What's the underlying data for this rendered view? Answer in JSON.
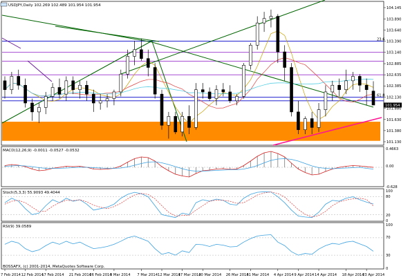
{
  "main": {
    "header": "USDJPY,Daily  102.269 102.489 101.954 101.954",
    "price_axis": [
      {
        "v": 104.145,
        "label": "104.145"
      },
      {
        "v": 103.89,
        "label": "103.890"
      },
      {
        "v": 103.64,
        "label": "103.640"
      },
      {
        "v": 103.39,
        "label": "103.390"
      },
      {
        "v": 103.14,
        "label": "103.140"
      },
      {
        "v": 102.885,
        "label": "102.885"
      },
      {
        "v": 102.635,
        "label": "102.635"
      },
      {
        "v": 102.385,
        "label": "102.385"
      },
      {
        "v": 102.13,
        "label": "102.130"
      },
      {
        "v": 101.88,
        "label": "101.880"
      },
      {
        "v": 101.63,
        "label": "101.630"
      },
      {
        "v": 101.38,
        "label": "101.380"
      },
      {
        "v": 101.13,
        "label": "101.130"
      }
    ],
    "price_badge": "101.954",
    "level_tags": [
      "23.6",
      "61.8"
    ]
  },
  "macd": {
    "header": "MACD(12,26,9) -0.0011 -0.0527 -0.0532",
    "axis": [
      "0.4663",
      "0.00",
      "-0.628"
    ]
  },
  "stoch": {
    "header": "Stoch(5,3,3) 55.9093 49.4044",
    "axis": [
      "100",
      "80",
      "20",
      "0"
    ]
  },
  "rsi": {
    "header": "RSI(9) 39.0589",
    "axis": [
      "100",
      "70",
      "30",
      "0"
    ]
  },
  "footer": {
    "copyright": "BOSSAFX, (c) 2001-2014, MetaQuotes Software Corp.",
    "dates": [
      "7 Feb 2014",
      "12 Feb 2014",
      "17 Feb 2014",
      "21 Feb 2014",
      "26 Feb 2014",
      "3 Mar 2014",
      "7 Mar 2014",
      "12 Mar 2014",
      "17 Mar 2014",
      "20 Mar 2014",
      "26 Mar 2014",
      "31 Mar 2014",
      "4 Apr 2014",
      "9 Apr 2014",
      "14 Apr 2014",
      "18 Apr 2014",
      "23 Apr 2014"
    ]
  },
  "colors": {
    "up": "#ffffff",
    "down": "#000000",
    "support_zone": "#ff8c00",
    "trend_green": "#006400",
    "level_blue": "#0000c8",
    "level_purple": "#9932cc",
    "trend_magenta": "#ff1493",
    "macd_main": "#d22020",
    "macd_signal": "#3aa0e0",
    "stoch_signal": "#e03030"
  },
  "chart_data": {
    "type": "candlestick",
    "symbol": "USDJPY",
    "timeframe": "Daily",
    "x": [
      "7 Feb 2014",
      "10 Feb",
      "11 Feb",
      "12 Feb 2014",
      "13 Feb",
      "14 Feb",
      "17 Feb 2014",
      "18 Feb",
      "19 Feb",
      "20 Feb",
      "21 Feb 2014",
      "24 Feb",
      "25 Feb",
      "26 Feb 2014",
      "27 Feb",
      "28 Feb",
      "3 Mar 2014",
      "4 Mar",
      "5 Mar",
      "6 Mar",
      "7 Mar 2014",
      "10 Mar",
      "11 Mar",
      "12 Mar 2014",
      "13 Mar",
      "14 Mar",
      "17 Mar 2014",
      "18 Mar",
      "19 Mar",
      "20 Mar 2014",
      "21 Mar",
      "24 Mar",
      "25 Mar",
      "26 Mar 2014",
      "27 Mar",
      "28 Mar",
      "31 Mar 2014",
      "1 Apr",
      "2 Apr",
      "3 Apr",
      "4 Apr 2014",
      "7 Apr",
      "8 Apr",
      "9 Apr 2014",
      "10 Apr",
      "11 Apr",
      "14 Apr 2014",
      "15 Apr",
      "16 Apr",
      "17 Apr",
      "18 Apr 2014",
      "21 Apr",
      "22 Apr",
      "23 Apr 2014",
      "24 Apr"
    ],
    "ohlc": [
      [
        102.5,
        102.6,
        102.1,
        102.3
      ],
      [
        102.3,
        102.7,
        102.2,
        102.6
      ],
      [
        102.6,
        102.75,
        102.3,
        102.4
      ],
      [
        102.4,
        102.55,
        101.9,
        102.0
      ],
      [
        102.0,
        102.1,
        101.6,
        101.8
      ],
      [
        101.8,
        102.0,
        101.55,
        101.9
      ],
      [
        101.9,
        102.25,
        101.75,
        102.15
      ],
      [
        102.15,
        102.45,
        102.05,
        102.35
      ],
      [
        102.35,
        102.55,
        102.1,
        102.2
      ],
      [
        102.2,
        102.6,
        102.05,
        102.5
      ],
      [
        102.5,
        102.6,
        102.2,
        102.3
      ],
      [
        102.3,
        102.5,
        102.1,
        102.4
      ],
      [
        102.4,
        102.5,
        102.05,
        102.2
      ],
      [
        102.2,
        102.3,
        101.8,
        102.0
      ],
      [
        102.0,
        102.2,
        101.85,
        102.05
      ],
      [
        102.05,
        102.2,
        101.9,
        102.1
      ],
      [
        102.1,
        102.3,
        101.95,
        102.25
      ],
      [
        102.25,
        102.75,
        102.15,
        102.65
      ],
      [
        102.65,
        103.2,
        102.55,
        103.05
      ],
      [
        103.05,
        103.4,
        102.85,
        103.2
      ],
      [
        103.2,
        103.45,
        102.95,
        103.0
      ],
      [
        103.0,
        103.2,
        102.6,
        102.8
      ],
      [
        102.8,
        102.9,
        102.1,
        102.2
      ],
      [
        102.2,
        102.3,
        101.4,
        101.5
      ],
      [
        101.5,
        101.8,
        101.2,
        101.7
      ],
      [
        101.7,
        101.8,
        101.3,
        101.35
      ],
      [
        101.35,
        101.8,
        101.25,
        101.7
      ],
      [
        101.7,
        101.95,
        101.3,
        101.45
      ],
      [
        101.45,
        102.45,
        101.4,
        102.3
      ],
      [
        102.3,
        102.45,
        102.1,
        102.25
      ],
      [
        102.25,
        102.35,
        102.05,
        102.1
      ],
      [
        102.1,
        102.4,
        101.95,
        102.3
      ],
      [
        102.3,
        102.45,
        102.15,
        102.25
      ],
      [
        102.25,
        102.4,
        102.0,
        102.05
      ],
      [
        102.05,
        102.2,
        101.95,
        102.15
      ],
      [
        102.15,
        102.9,
        102.1,
        102.85
      ],
      [
        102.85,
        103.35,
        102.75,
        103.3
      ],
      [
        103.3,
        103.95,
        103.2,
        103.8
      ],
      [
        103.8,
        104.05,
        103.6,
        103.9
      ],
      [
        103.9,
        104.1,
        103.7,
        103.95
      ],
      [
        103.95,
        104.0,
        102.9,
        103.15
      ],
      [
        103.15,
        103.3,
        102.5,
        102.8
      ],
      [
        102.8,
        102.9,
        101.7,
        101.8
      ],
      [
        101.8,
        102.05,
        101.3,
        101.4
      ],
      [
        101.4,
        101.7,
        101.3,
        101.65
      ],
      [
        101.65,
        101.8,
        101.3,
        101.45
      ],
      [
        101.45,
        102.0,
        101.35,
        101.85
      ],
      [
        101.85,
        102.4,
        101.7,
        102.25
      ],
      [
        102.25,
        102.5,
        102.05,
        102.4
      ],
      [
        102.4,
        102.55,
        102.15,
        102.3
      ],
      [
        102.3,
        102.75,
        102.2,
        102.5
      ],
      [
        102.5,
        102.7,
        102.3,
        102.6
      ],
      [
        102.6,
        102.65,
        102.25,
        102.4
      ],
      [
        102.4,
        102.55,
        101.95,
        102.3
      ],
      [
        102.269,
        102.489,
        101.954,
        101.954
      ]
    ],
    "support_zone": [
      101.15,
      101.58
    ],
    "horizontal_levels": [
      103.39,
      103.14,
      102.94,
      102.635,
      102.13,
      102.05
    ],
    "macd": {
      "main": [
        0.05,
        0.08,
        0.06,
        0.02,
        -0.05,
        -0.1,
        -0.08,
        -0.03,
        0.0,
        0.03,
        0.02,
        0.03,
        0.0,
        -0.05,
        -0.06,
        -0.05,
        -0.03,
        0.04,
        0.15,
        0.25,
        0.3,
        0.28,
        0.18,
        0.02,
        -0.1,
        -0.2,
        -0.25,
        -0.28,
        -0.18,
        -0.1,
        -0.08,
        -0.05,
        -0.04,
        -0.06,
        -0.05,
        0.05,
        0.18,
        0.32,
        0.42,
        0.46,
        0.4,
        0.3,
        0.12,
        -0.05,
        -0.15,
        -0.22,
        -0.2,
        -0.12,
        -0.05,
        0.0,
        0.03,
        0.05,
        0.04,
        0.02,
        -0.0011
      ],
      "signal": [
        0.03,
        0.04,
        0.05,
        0.04,
        0.02,
        -0.01,
        -0.03,
        -0.03,
        -0.03,
        -0.02,
        -0.01,
        0.0,
        0.0,
        -0.01,
        -0.02,
        -0.03,
        -0.03,
        -0.02,
        0.01,
        0.06,
        0.11,
        0.15,
        0.16,
        0.13,
        0.08,
        0.02,
        -0.04,
        -0.09,
        -0.11,
        -0.11,
        -0.1,
        -0.09,
        -0.08,
        -0.07,
        -0.07,
        -0.05,
        -0.01,
        0.05,
        0.13,
        0.2,
        0.24,
        0.25,
        0.23,
        0.18,
        0.11,
        0.04,
        -0.01,
        -0.03,
        -0.04,
        -0.03,
        -0.02,
        -0.01,
        0.0,
        -0.03,
        -0.0527
      ]
    },
    "stoch": {
      "main": [
        60,
        75,
        65,
        40,
        20,
        25,
        50,
        70,
        60,
        75,
        65,
        70,
        55,
        35,
        40,
        45,
        55,
        75,
        88,
        95,
        90,
        80,
        50,
        20,
        15,
        10,
        25,
        20,
        60,
        70,
        65,
        72,
        68,
        55,
        52,
        75,
        88,
        95,
        97,
        96,
        80,
        60,
        35,
        15,
        12,
        10,
        28,
        55,
        68,
        65,
        75,
        80,
        70,
        62,
        55.9
      ],
      "signal": [
        55,
        65,
        68,
        60,
        45,
        30,
        32,
        48,
        60,
        68,
        67,
        70,
        63,
        52,
        45,
        40,
        47,
        58,
        73,
        86,
        91,
        88,
        73,
        50,
        28,
        15,
        17,
        18,
        35,
        50,
        65,
        69,
        68,
        65,
        58,
        60,
        72,
        86,
        93,
        96,
        91,
        79,
        58,
        37,
        21,
        12,
        17,
        31,
        50,
        63,
        69,
        73,
        75,
        71,
        49.4
      ]
    },
    "rsi": [
      55,
      62,
      58,
      45,
      38,
      42,
      52,
      60,
      55,
      62,
      56,
      60,
      52,
      45,
      47,
      50,
      55,
      62,
      70,
      74,
      68,
      62,
      45,
      32,
      36,
      30,
      40,
      36,
      55,
      54,
      50,
      55,
      53,
      49,
      50,
      60,
      68,
      74,
      76,
      77,
      60,
      52,
      38,
      30,
      34,
      32,
      44,
      52,
      57,
      55,
      60,
      62,
      56,
      50,
      39.06
    ],
    "ylim": [
      101.1,
      104.2
    ]
  }
}
